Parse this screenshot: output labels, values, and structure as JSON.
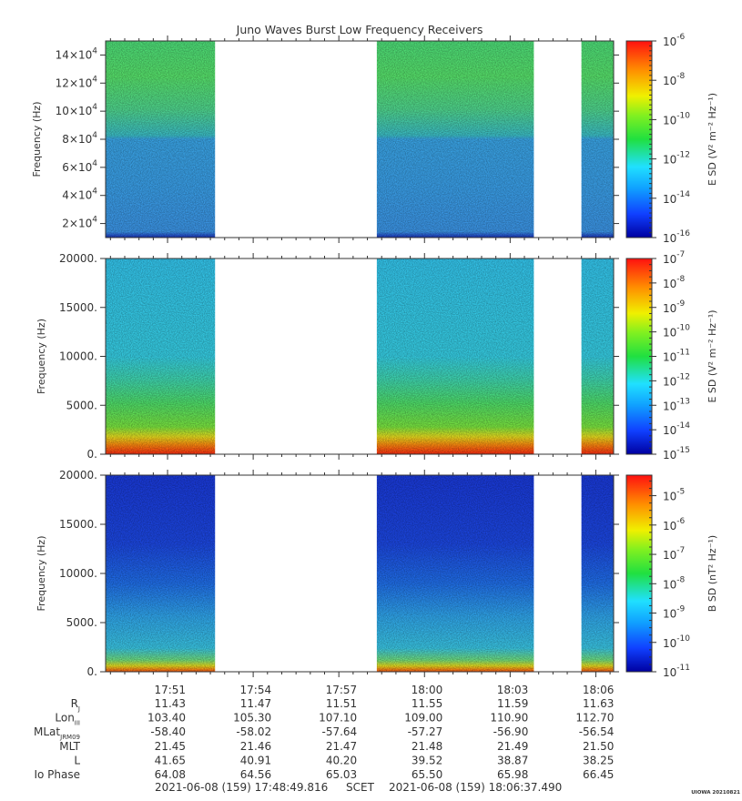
{
  "title": "Juno Waves Burst Low Frequency Receivers",
  "credit": "UIOWA 20210821",
  "colors": {
    "background": "#ffffff",
    "axis": "#333333",
    "gap": "#ffffff"
  },
  "chart_data": [
    {
      "type": "heatmap",
      "panel": "top",
      "ylabel": "Frequency (Hz)",
      "ylim": [
        10000,
        150000
      ],
      "yticks": [
        20000,
        40000,
        60000,
        80000,
        100000,
        120000,
        140000
      ],
      "ytick_labels": [
        {
          "base": "2×10",
          "exp": "4"
        },
        {
          "base": "4×10",
          "exp": "4"
        },
        {
          "base": "6×10",
          "exp": "4"
        },
        {
          "base": "8×10",
          "exp": "4"
        },
        {
          "base": "10×10",
          "exp": "4"
        },
        {
          "base": "12×10",
          "exp": "4"
        },
        {
          "base": "14×10",
          "exp": "4"
        }
      ],
      "colorbar_label": "E SD (V² m⁻² Hz⁻¹)",
      "colorbar_scale": "log",
      "colorbar_range_exp": [
        -16,
        -6
      ],
      "colorbar_tick_exps": [
        -6,
        -8,
        -10,
        -12,
        -14,
        -16
      ],
      "description": "green above 80 kHz, blue-cyan below 80 kHz"
    },
    {
      "type": "heatmap",
      "panel": "middle",
      "ylabel": "Frequency (Hz)",
      "ylim": [
        0,
        20000
      ],
      "yticks": [
        0,
        5000,
        10000,
        15000,
        20000
      ],
      "ytick_labels": [
        "0.",
        "5000.",
        "10000.",
        "15000.",
        "20000."
      ],
      "colorbar_label": "E SD (V² m⁻² Hz⁻¹)",
      "colorbar_scale": "log",
      "colorbar_range_exp": [
        -15,
        -7
      ],
      "colorbar_tick_exps": [
        -7,
        -8,
        -9,
        -10,
        -11,
        -12,
        -13,
        -14,
        -15
      ],
      "description": "red-orange at low frequency, green to ~7 kHz, cyan above"
    },
    {
      "type": "heatmap",
      "panel": "bottom",
      "ylabel": "Frequency (Hz)",
      "ylim": [
        0,
        20000
      ],
      "yticks": [
        0,
        5000,
        10000,
        15000,
        20000
      ],
      "ytick_labels": [
        "0.",
        "5000.",
        "10000.",
        "15000.",
        "20000."
      ],
      "colorbar_label": "B SD (nT² Hz⁻¹)",
      "colorbar_scale": "log",
      "colorbar_range_exp": [
        -11,
        -4.3
      ],
      "colorbar_tick_exps": [
        -5,
        -6,
        -7,
        -8,
        -9,
        -10,
        -11
      ],
      "description": "dark blue dominant, cyan below ~7 kHz, yellow-red near 0"
    }
  ],
  "time_axis": {
    "start_seconds": 0,
    "end_seconds": 1067.674,
    "data_intervals_seconds": [
      [
        0,
        230
      ],
      [
        570,
        900
      ],
      [
        1000,
        1067.674
      ]
    ],
    "tick_labels": [
      "17:51",
      "17:54",
      "17:57",
      "18:00",
      "18:03",
      "18:06"
    ],
    "tick_offsets_seconds": [
      130.184,
      310.184,
      490.184,
      670.184,
      850.184,
      1030.184
    ]
  },
  "ephemeris_rows": [
    {
      "label": "R",
      "sub": "J",
      "values": [
        "11.43",
        "11.47",
        "11.51",
        "11.55",
        "11.59",
        "11.63"
      ]
    },
    {
      "label": "Lon",
      "sub": "III",
      "values": [
        "103.40",
        "105.30",
        "107.10",
        "109.00",
        "110.90",
        "112.70"
      ]
    },
    {
      "label": "MLat",
      "sub": "JRM09",
      "values": [
        "-58.40",
        "-58.02",
        "-57.64",
        "-57.27",
        "-56.90",
        "-56.54"
      ]
    },
    {
      "label": "MLT",
      "sub": "",
      "values": [
        "21.45",
        "21.46",
        "21.47",
        "21.48",
        "21.49",
        "21.50"
      ]
    },
    {
      "label": "L",
      "sub": "",
      "values": [
        "41.65",
        "40.91",
        "40.20",
        "39.52",
        "38.87",
        "38.25"
      ]
    },
    {
      "label": "Io Phase",
      "sub": "",
      "values": [
        "64.08",
        "64.56",
        "65.03",
        "65.50",
        "65.98",
        "66.45"
      ]
    }
  ],
  "footer": {
    "start": "2021-06-08 (159) 17:48:49.816",
    "mid": "SCET",
    "end": "2021-06-08 (159) 18:06:37.490"
  }
}
